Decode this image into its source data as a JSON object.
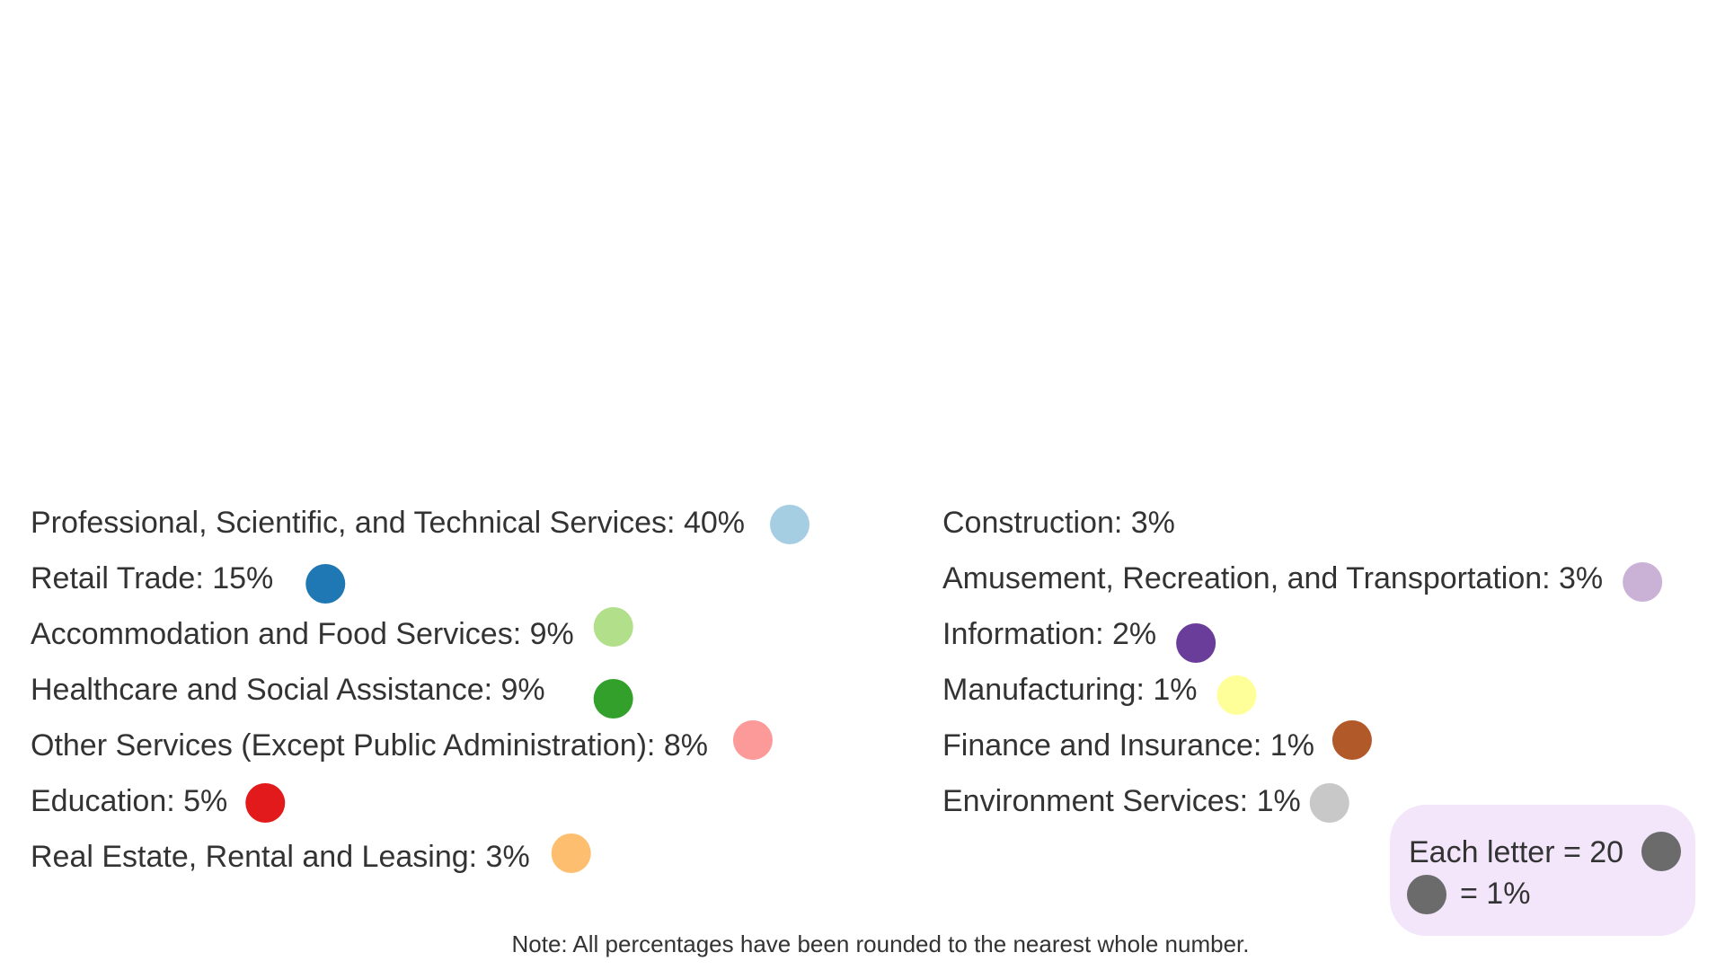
{
  "chart_data": {
    "type": "pictograph",
    "categories": [
      {
        "name": "Professional, Scientific, and Technical Services",
        "percent": 40,
        "color": "#a6cee3"
      },
      {
        "name": "Retail Trade",
        "percent": 15,
        "color": "#1f78b4"
      },
      {
        "name": "Accommodation and Food Services",
        "percent": 9,
        "color": "#b2df8a"
      },
      {
        "name": "Healthcare and Social Assistance",
        "percent": 9,
        "color": "#33a02c"
      },
      {
        "name": "Other Services (Except Public Administration)",
        "percent": 8,
        "color": "#fb9a99"
      },
      {
        "name": "Education",
        "percent": 5,
        "color": "#e31a1c"
      },
      {
        "name": "Real Estate, Rental and Leasing",
        "percent": 3,
        "color": "#fdbf6f"
      },
      {
        "name": "Construction",
        "percent": 3,
        "color": ""
      },
      {
        "name": "Amusement, Recreation, and Transportation",
        "percent": 3,
        "color": "#cab2d6"
      },
      {
        "name": "Information",
        "percent": 2,
        "color": "#6a3d9a"
      },
      {
        "name": "Manufacturing",
        "percent": 1,
        "color": "#ffff99"
      },
      {
        "name": "Finance and Insurance",
        "percent": 1,
        "color": "#b15928"
      },
      {
        "name": "Environment Services",
        "percent": 1,
        "color": "#c8c8c8"
      }
    ],
    "key": {
      "line1": "Each letter = 20",
      "line2": "= 1%",
      "dot_color": "#6b6b6b"
    },
    "note": "Note: All percentages have been rounded to the nearest whole number."
  }
}
